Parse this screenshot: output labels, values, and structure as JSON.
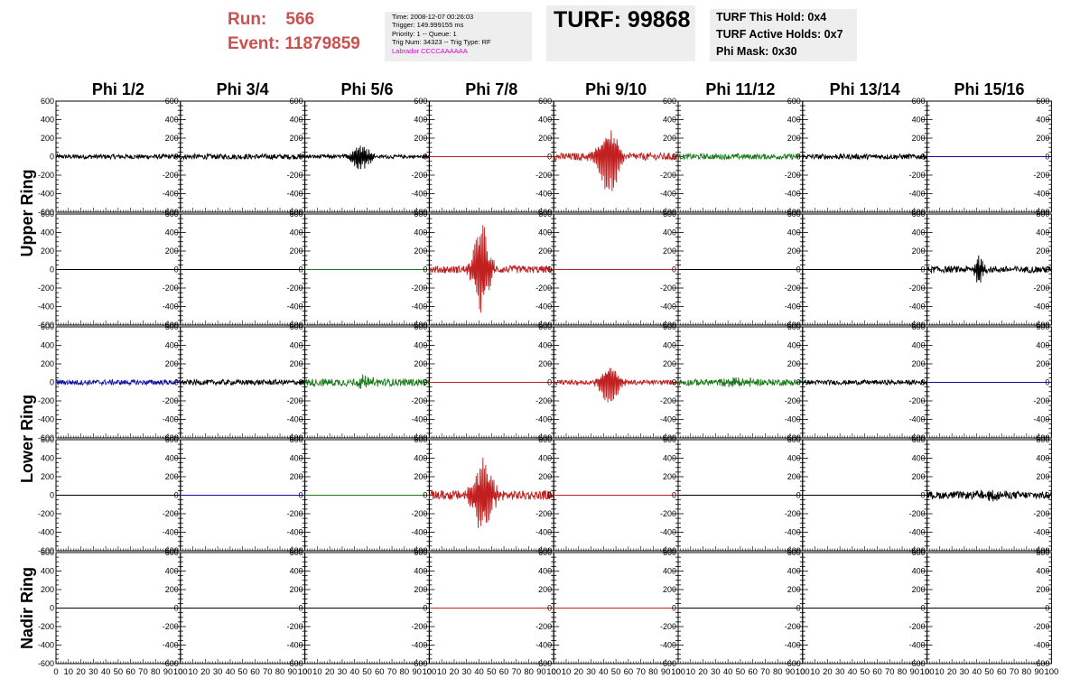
{
  "header": {
    "run_label": "Run:",
    "run_value": "566",
    "event_label": "Event:",
    "event_value": "11879859",
    "time": "Time: 2008-12-07 00:26:03",
    "trigger": "Trigger: 149.999155 ms",
    "priority": "Priority: 1 -- Queue: 1",
    "trig_num": "Trig Num: 34323 -- Trig Type: RF",
    "labrador": "Labrador CCCCAAAAAA",
    "turf": "TURF: 99868",
    "turf_this_hold": "TURF This Hold: 0x4",
    "turf_active_holds": "TURF Active Holds: 0x7",
    "phi_mask": "Phi Mask: 0x30"
  },
  "chart_data": {
    "type": "line",
    "column_titles": [
      "Phi 1/2",
      "Phi 3/4",
      "Phi 5/6",
      "Phi 7/8",
      "Phi 9/10",
      "Phi 11/12",
      "Phi 13/14",
      "Phi 15/16"
    ],
    "ring_labels": [
      {
        "text": "Upper Ring",
        "rows": [
          0,
          1
        ]
      },
      {
        "text": "Lower Ring",
        "rows": [
          2,
          3
        ]
      },
      {
        "text": "Nadir Ring",
        "rows": [
          4
        ]
      }
    ],
    "y_ticks": [
      600,
      400,
      200,
      0,
      -200,
      -400,
      -600
    ],
    "x_tick_labels": [
      "0",
      "10",
      "20",
      "30",
      "40",
      "50",
      "60",
      "70",
      "80",
      "90",
      "100"
    ],
    "ylim": [
      -600,
      600
    ],
    "xlim": [
      0,
      100
    ],
    "colors": {
      "black": "#000000",
      "red": "#c02020",
      "green": "#1a7a1a",
      "blue": "#1010a0"
    },
    "panels": [
      [
        {
          "color": "black",
          "amp": 25,
          "burst": null
        },
        {
          "color": "black",
          "amp": 28,
          "burst": null
        },
        {
          "color": "black",
          "amp": 20,
          "burst": {
            "center": 45,
            "width": 8,
            "amp": 170,
            "freq": 1.5
          }
        },
        {
          "color": "red",
          "amp": 0,
          "burst": null
        },
        {
          "color": "red",
          "amp": 40,
          "burst": {
            "center": 44,
            "width": 9,
            "amp": 440,
            "freq": 1.2
          }
        },
        {
          "color": "green",
          "amp": 30,
          "burst": null
        },
        {
          "color": "black",
          "amp": 28,
          "burst": null
        },
        {
          "color": "blue",
          "amp": 0,
          "burst": null
        }
      ],
      [
        {
          "color": "black",
          "amp": 0,
          "burst": null
        },
        {
          "color": "black",
          "amp": 0,
          "burst": null
        },
        {
          "color": "green",
          "amp": 0,
          "burst": null
        },
        {
          "color": "red",
          "amp": 40,
          "burst": {
            "center": 42,
            "width": 7,
            "amp": 560,
            "freq": 1.3
          }
        },
        {
          "color": "red",
          "amp": 0,
          "burst": null
        },
        {
          "color": "black",
          "amp": 0,
          "burst": null
        },
        {
          "color": "black",
          "amp": 0,
          "burst": null
        },
        {
          "color": "black",
          "amp": 35,
          "burst": {
            "center": 42,
            "width": 4,
            "amp": 180,
            "freq": 1.5
          }
        }
      ],
      [
        {
          "color": "blue",
          "amp": 28,
          "burst": null
        },
        {
          "color": "black",
          "amp": 28,
          "burst": null
        },
        {
          "color": "green",
          "amp": 40,
          "burst": {
            "center": 47,
            "width": 10,
            "amp": 60,
            "freq": 1.4
          }
        },
        {
          "color": "red",
          "amp": 0,
          "burst": null
        },
        {
          "color": "red",
          "amp": 25,
          "burst": {
            "center": 45,
            "width": 8,
            "amp": 260,
            "freq": 1.2
          }
        },
        {
          "color": "green",
          "amp": 35,
          "burst": {
            "center": 50,
            "width": 12,
            "amp": 50,
            "freq": 1.4
          }
        },
        {
          "color": "black",
          "amp": 25,
          "burst": null
        },
        {
          "color": "blue",
          "amp": 0,
          "burst": null
        }
      ],
      [
        {
          "color": "black",
          "amp": 0,
          "burst": null
        },
        {
          "color": "blue",
          "amp": 0,
          "burst": null
        },
        {
          "color": "green",
          "amp": 0,
          "burst": null
        },
        {
          "color": "red",
          "amp": 50,
          "burst": {
            "center": 43,
            "width": 9,
            "amp": 450,
            "freq": 1.3
          }
        },
        {
          "color": "red",
          "amp": 0,
          "burst": null
        },
        {
          "color": "black",
          "amp": 0,
          "burst": null
        },
        {
          "color": "black",
          "amp": 0,
          "burst": null
        },
        {
          "color": "black",
          "amp": 40,
          "burst": {
            "center": 50,
            "width": 10,
            "amp": 50,
            "freq": 1.5
          }
        }
      ],
      [
        {
          "color": "black",
          "amp": 0,
          "burst": null
        },
        {
          "color": "black",
          "amp": 0,
          "burst": null
        },
        {
          "color": "black",
          "amp": 0,
          "burst": null
        },
        {
          "color": "red",
          "amp": 0,
          "burst": null
        },
        {
          "color": "red",
          "amp": 0,
          "burst": null
        },
        {
          "color": "black",
          "amp": 0,
          "burst": null
        },
        {
          "color": "black",
          "amp": 0,
          "burst": null
        },
        {
          "color": "black",
          "amp": 0,
          "burst": null
        }
      ]
    ]
  }
}
